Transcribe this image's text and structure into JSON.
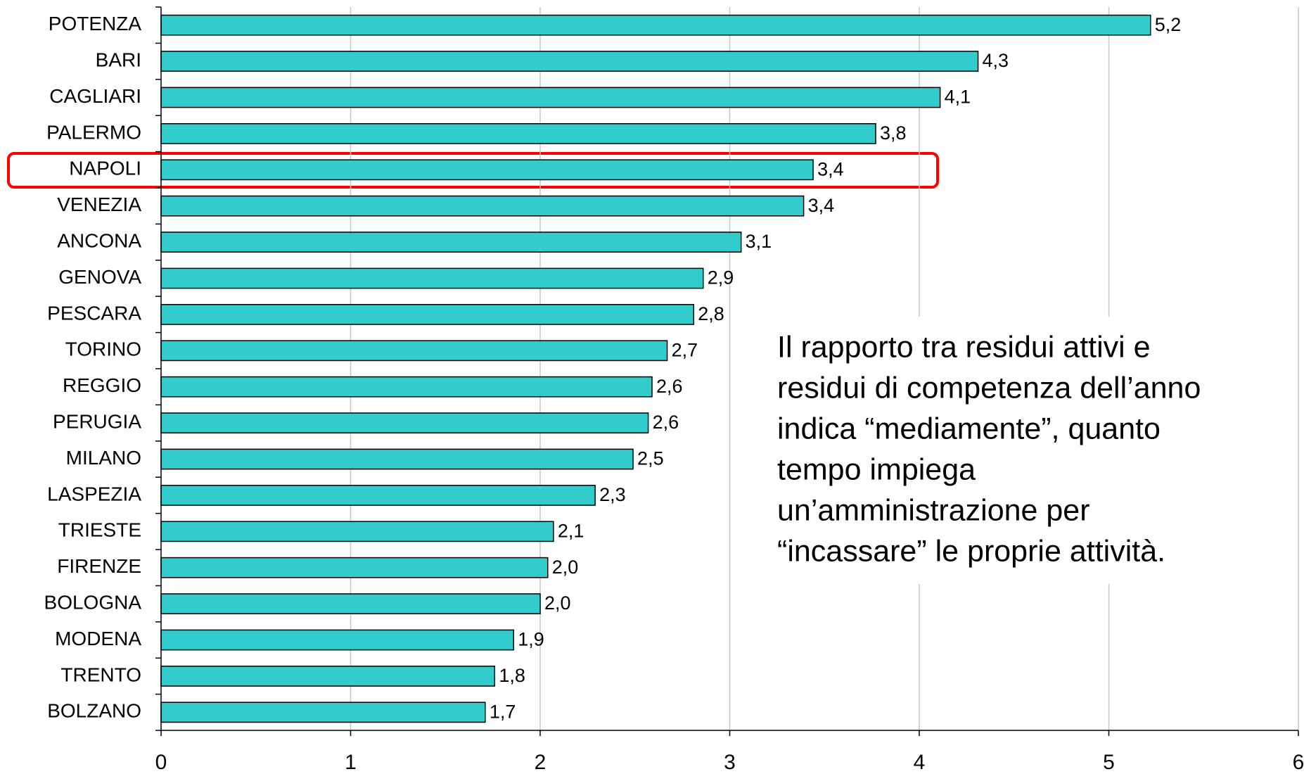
{
  "chart_data": {
    "type": "bar",
    "orientation": "horizontal",
    "categories": [
      "POTENZA",
      "BARI",
      "CAGLIARI",
      "PALERMO",
      "NAPOLI",
      "VENEZIA",
      "ANCONA",
      "GENOVA",
      "PESCARA",
      "TORINO",
      "REGGIO",
      "PERUGIA",
      "MILANO",
      "LASPEZIA",
      "TRIESTE",
      "FIRENZE",
      "BOLOGNA",
      "MODENA",
      "TRENTO",
      "BOLZANO"
    ],
    "values": [
      5.22,
      4.31,
      4.11,
      3.77,
      3.44,
      3.39,
      3.06,
      2.86,
      2.81,
      2.67,
      2.59,
      2.57,
      2.49,
      2.29,
      2.07,
      2.04,
      2.0,
      1.86,
      1.76,
      1.71
    ],
    "value_labels": [
      "5,2",
      "4,3",
      "4,1",
      "3,8",
      "3,4",
      "3,4",
      "3,1",
      "2,9",
      "2,8",
      "2,7",
      "2,6",
      "2,6",
      "2,5",
      "2,3",
      "2,1",
      "2,0",
      "2,0",
      "1,9",
      "1,8",
      "1,7"
    ],
    "color": "#33cccc",
    "xlim": [
      0,
      6
    ],
    "xticks": [
      0,
      1,
      2,
      3,
      4,
      5,
      6
    ],
    "grid": true,
    "annotation": [
      "Il rapporto tra residui attivi e",
      "residui di competenza dell’anno",
      "indica “mediamente”, quanto",
      "tempo impiega",
      "un’amministrazione per",
      "“incassare” le proprie attività."
    ]
  }
}
